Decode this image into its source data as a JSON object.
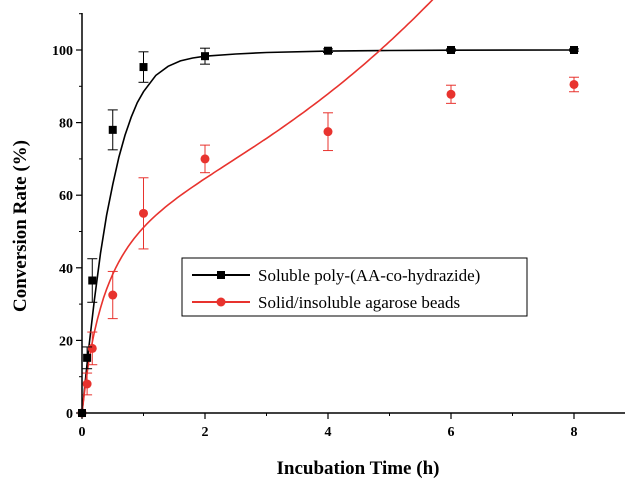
{
  "chart_data": {
    "type": "scatter",
    "xlabel": "Incubation Time (h)",
    "ylabel": "Conversion Rate (%)",
    "xlim": [
      0,
      9
    ],
    "ylim": [
      0,
      110
    ],
    "x_ticks": [
      "0",
      "2",
      "4",
      "6",
      "8"
    ],
    "y_ticks": [
      "0",
      "20",
      "40",
      "60",
      "80",
      "100"
    ],
    "grid": false,
    "legend_position": "center-right",
    "series": [
      {
        "name": "Soluble poly-(AA-co-hydrazide)",
        "color": "#000000",
        "marker": "square",
        "x": [
          0,
          0.083,
          0.167,
          0.5,
          1,
          2,
          4,
          6,
          8
        ],
        "y": [
          0,
          15.2,
          36.5,
          78,
          95.3,
          98.3,
          99.8,
          100,
          100
        ],
        "error": [
          0,
          3,
          6,
          5.5,
          4.2,
          2.2,
          0.5,
          0.3,
          0.3
        ],
        "fit": [
          [
            0,
            0
          ],
          [
            0.1,
            16.5
          ],
          [
            0.2,
            31
          ],
          [
            0.3,
            44
          ],
          [
            0.4,
            54.5
          ],
          [
            0.5,
            63
          ],
          [
            0.6,
            70.5
          ],
          [
            0.7,
            76.5
          ],
          [
            0.8,
            81.5
          ],
          [
            0.9,
            85.5
          ],
          [
            1.0,
            88.5
          ],
          [
            1.2,
            93
          ],
          [
            1.4,
            95.5
          ],
          [
            1.6,
            97
          ],
          [
            1.8,
            97.8
          ],
          [
            2.0,
            98.3
          ],
          [
            2.5,
            98.9
          ],
          [
            3.0,
            99.3
          ],
          [
            4.0,
            99.7
          ],
          [
            5.0,
            99.85
          ],
          [
            6.0,
            99.95
          ],
          [
            8.0,
            100
          ]
        ]
      },
      {
        "name": "Solid/insoluble agarose beads",
        "color": "#e8332e",
        "marker": "circle",
        "x": [
          0,
          0.083,
          0.167,
          0.5,
          1,
          2,
          4,
          6,
          8
        ],
        "y": [
          0,
          8,
          17.8,
          32.5,
          55,
          70,
          77.5,
          87.8,
          90.5
        ],
        "error": [
          0,
          3,
          4.5,
          6.5,
          9.8,
          3.8,
          5.2,
          2.5,
          2
        ]
      }
    ]
  }
}
